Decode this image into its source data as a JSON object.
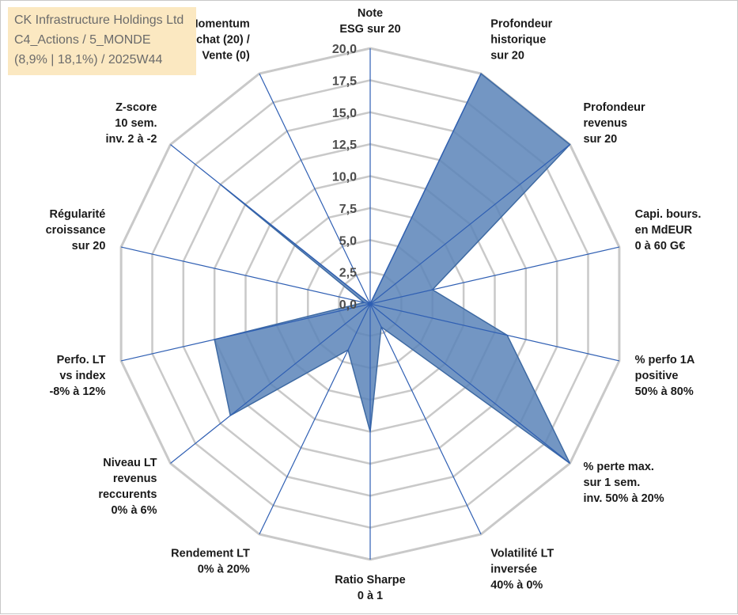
{
  "title_box": {
    "line1": "CK Infrastructure Holdings Ltd",
    "line2": "C4_Actions / 5_MONDE",
    "line3": "(8,9% | 18,1%) / 2025W44"
  },
  "chart_data": {
    "type": "radar",
    "rmin": 0,
    "rmax": 20,
    "tick_step": 2.5,
    "tick_labels": [
      "0,0",
      "2,5",
      "5,0",
      "7,5",
      "10,0",
      "12,5",
      "15,0",
      "17,5",
      "20,0"
    ],
    "axes": [
      {
        "lines": [
          "Note",
          "ESG sur 20"
        ],
        "value": 0
      },
      {
        "lines": [
          "Profondeur",
          "historique",
          "sur 20"
        ],
        "value": 20
      },
      {
        "lines": [
          "Profondeur",
          "revenus",
          "sur 20"
        ],
        "value": 20
      },
      {
        "lines": [
          "Capi. bours.",
          "en MdEUR",
          "0 à 60 G€"
        ],
        "value": 5
      },
      {
        "lines": [
          "% perfo 1A",
          "positive",
          "50% à 80%"
        ],
        "value": 11
      },
      {
        "lines": [
          "% perte max.",
          "sur 1 sem.",
          "inv. 50% à 20%"
        ],
        "value": 20
      },
      {
        "lines": [
          "Volatilité LT",
          "inversée",
          "40% à 0%"
        ],
        "value": 2
      },
      {
        "lines": [
          "Ratio Sharpe",
          "0 à 1"
        ],
        "value": 10
      },
      {
        "lines": [
          "Rendement LT",
          "0% à 20%"
        ],
        "value": 4
      },
      {
        "lines": [
          "Niveau LT",
          "revenus",
          "reccurents",
          "0% à 6%"
        ],
        "value": 14
      },
      {
        "lines": [
          "Perfo. LT",
          "vs index",
          "-8% à 12%"
        ],
        "value": 12.5
      },
      {
        "lines": [
          "Régularité",
          "croissance",
          "sur 20"
        ],
        "value": 0.5
      },
      {
        "lines": [
          "Z-score",
          "10 sem.",
          "inv. 2 à -2"
        ],
        "value": 15
      },
      {
        "lines": [
          "Momentum",
          "Achat (20) /",
          "Vente (0)"
        ],
        "value": 0
      }
    ],
    "colors": {
      "fill": "#5b84b8",
      "stroke": "#3e6aa3",
      "grid": "#c9c9c9",
      "spoke": "#2f5fb3"
    }
  }
}
